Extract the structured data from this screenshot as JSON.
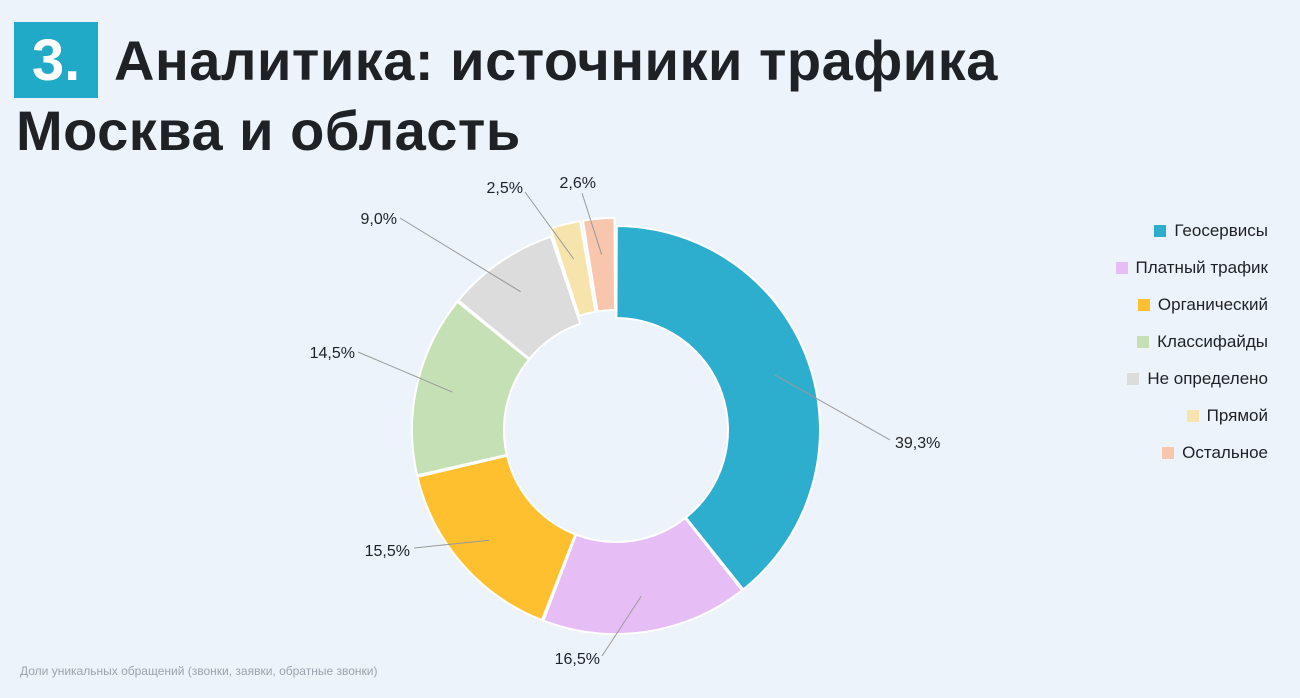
{
  "header": {
    "number": "3.",
    "title": "Аналитика: источники трафика",
    "subtitle": "Москва и область"
  },
  "footnote": "Доли уникальных обращений (звонки, заявки, обратные звонки)",
  "chart_data": {
    "type": "pie",
    "donut": true,
    "legend_position": "right",
    "slices": [
      {
        "name": "Геосервисы",
        "value": 39.3,
        "label": "39,3%",
        "color": "#2eaecf"
      },
      {
        "name": "Платный трафик",
        "value": 16.5,
        "label": "16,5%",
        "color": "#e6bdf5"
      },
      {
        "name": "Органический",
        "value": 15.5,
        "label": "15,5%",
        "color": "#fec02e"
      },
      {
        "name": "Классифайды",
        "value": 14.5,
        "label": "14,5%",
        "color": "#c6e0b6"
      },
      {
        "name": "Не определено",
        "value": 9.0,
        "label": "9,0%",
        "color": "#dcdcdc"
      },
      {
        "name": "Прямой",
        "value": 2.5,
        "label": "2,5%",
        "color": "#f7e4ac"
      },
      {
        "name": "Остальное",
        "value": 2.6,
        "label": "2,6%",
        "color": "#f7c6ac"
      }
    ]
  }
}
